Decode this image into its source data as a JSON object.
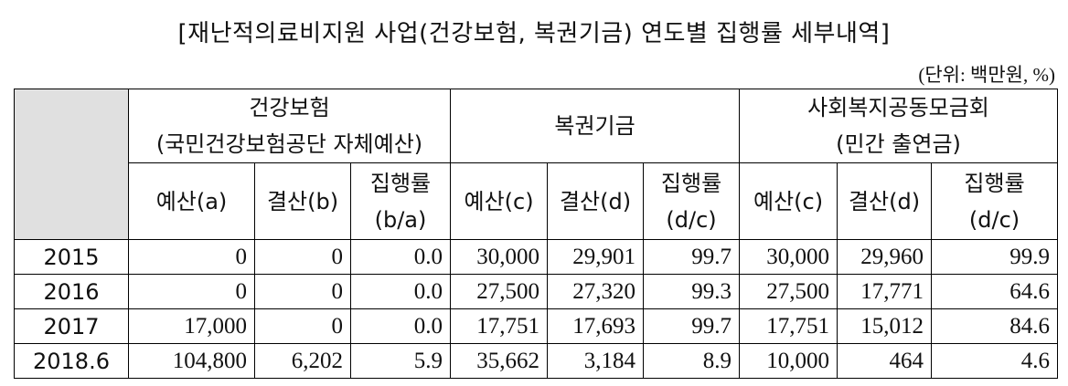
{
  "title": "[재난적의료비지원 사업(건강보험, 복권기금) 연도별 집행률 세부내역]",
  "unit": "(단위: 백만원, %)",
  "table": {
    "groups": [
      [
        "건강보험",
        "(국민건강보험공단 자체예산)"
      ],
      [
        "복권기금"
      ],
      [
        "사회복지공동모금회",
        "(민간 출연금)"
      ]
    ],
    "subheaders": [
      [
        "예산(a)"
      ],
      [
        "결산(b)"
      ],
      [
        "집행률",
        "(b/a)"
      ],
      [
        "예산(c)"
      ],
      [
        "결산(d)"
      ],
      [
        "집행률",
        "(d/c)"
      ],
      [
        "예산(c)"
      ],
      [
        "결산(d)"
      ],
      [
        "집행률",
        "(d/c)"
      ]
    ],
    "rows": [
      [
        "2015",
        "0",
        "0",
        "0.0",
        "30,000",
        "29,901",
        "99.7",
        "30,000",
        "29,960",
        "99.9"
      ],
      [
        "2016",
        "0",
        "0",
        "0.0",
        "27,500",
        "27,320",
        "99.3",
        "27,500",
        "17,771",
        "64.6"
      ],
      [
        "2017",
        "17,000",
        "0",
        "0.0",
        "17,751",
        "17,693",
        "99.7",
        "17,751",
        "15,012",
        "84.6"
      ],
      [
        "2018.6",
        "104,800",
        "6,202",
        "5.9",
        "35,662",
        "3,184",
        "8.9",
        "10,000",
        "464",
        "4.6"
      ]
    ]
  }
}
